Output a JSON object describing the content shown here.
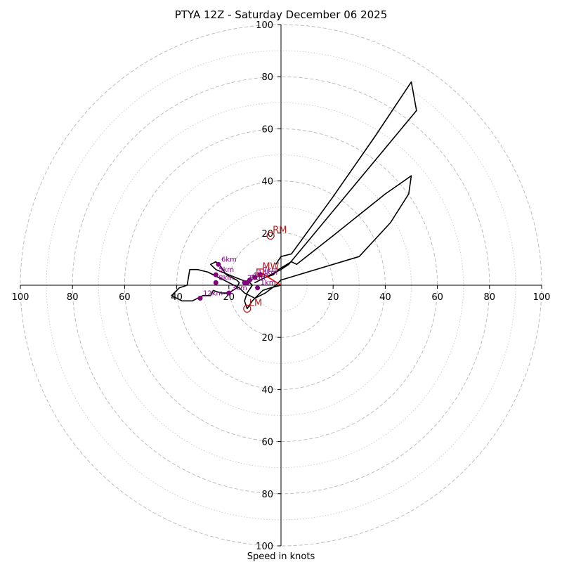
{
  "chart_data": {
    "type": "hodograph",
    "title": "PTYA 12Z - Saturday December 06 2025",
    "xlabel": "Speed in knots",
    "axis_range": [
      -100,
      100
    ],
    "major_rings": [
      20,
      40,
      60,
      80,
      100
    ],
    "minor_rings": [
      10,
      30,
      50,
      70,
      90
    ],
    "x_tick_labels": [
      "100",
      "80",
      "60",
      "40",
      "20",
      "20",
      "40",
      "60",
      "80",
      "100"
    ],
    "x_tick_values": [
      -100,
      -80,
      -60,
      -40,
      -20,
      20,
      40,
      60,
      80,
      100
    ],
    "y_tick_labels": [
      "100",
      "80",
      "60",
      "40",
      "20",
      "20",
      "40",
      "60",
      "80",
      "100"
    ],
    "y_tick_values": [
      100,
      80,
      60,
      40,
      20,
      -20,
      -40,
      -60,
      -80,
      -100
    ],
    "colors": {
      "hodograph": "#000000",
      "height_marker": "#800080",
      "storm_motion": "#b22222",
      "shear_vector": "#ff0000",
      "rings": "#bdbdbd"
    },
    "hodograph": [
      [
        0,
        0
      ],
      [
        -4,
        -1
      ],
      [
        -7,
        -2
      ],
      [
        -9,
        -4
      ],
      [
        -11,
        -6
      ],
      [
        -13,
        -9
      ],
      [
        -14,
        -6
      ],
      [
        -13,
        -3
      ],
      [
        -11,
        0
      ],
      [
        -12,
        1
      ],
      [
        -15,
        2
      ],
      [
        -20,
        4
      ],
      [
        -25,
        6
      ],
      [
        -27,
        8
      ],
      [
        -25,
        9
      ],
      [
        -23,
        7
      ],
      [
        -21,
        4
      ],
      [
        -17,
        2
      ],
      [
        -16,
        1
      ],
      [
        -17,
        -1
      ],
      [
        -20,
        -3
      ],
      [
        -23,
        -3
      ],
      [
        -26,
        -2
      ],
      [
        -27,
        -4
      ],
      [
        -30,
        -4
      ],
      [
        -34,
        -6
      ],
      [
        -38,
        -6
      ],
      [
        -42,
        -4
      ],
      [
        -39,
        -1
      ],
      [
        -36,
        0
      ],
      [
        -35,
        6
      ],
      [
        -32,
        6
      ],
      [
        -28,
        5
      ],
      [
        -24,
        3
      ],
      [
        -20,
        1
      ],
      [
        -16,
        -1
      ],
      [
        -14,
        -3
      ],
      [
        -12,
        -4
      ],
      [
        -10,
        -5
      ],
      [
        -8,
        -4
      ],
      [
        -6,
        -3
      ],
      [
        -2,
        0
      ],
      [
        0,
        2
      ],
      [
        30,
        11
      ],
      [
        42,
        24
      ],
      [
        49,
        35
      ],
      [
        50,
        42
      ],
      [
        40,
        35
      ],
      [
        20,
        19
      ],
      [
        6,
        8
      ],
      [
        4,
        9
      ],
      [
        -1,
        6
      ],
      [
        -3,
        4
      ],
      [
        -6,
        3
      ],
      [
        -10,
        1
      ],
      [
        -6,
        3
      ],
      [
        -2,
        5
      ],
      [
        0,
        6
      ],
      [
        3,
        8
      ],
      [
        52,
        67
      ],
      [
        50,
        78
      ],
      [
        36,
        57
      ],
      [
        20,
        34
      ],
      [
        4,
        12
      ],
      [
        0,
        11
      ],
      [
        -2,
        8
      ]
    ],
    "height_markers": [
      {
        "label": "1km",
        "u": -9,
        "v": -1
      },
      {
        "label": "2km",
        "u": -14,
        "v": 1
      },
      {
        "label": "3km",
        "u": -20,
        "v": -3
      },
      {
        "label": "4km",
        "u": -12,
        "v": 2
      },
      {
        "label": "5km",
        "u": -25,
        "v": 4
      },
      {
        "label": "6km",
        "u": -24,
        "v": 8
      },
      {
        "label": "7km",
        "u": -8,
        "v": 4
      },
      {
        "label": "8km",
        "u": -25,
        "v": 1
      },
      {
        "label": "9km",
        "u": -13,
        "v": 1
      },
      {
        "label": "10km",
        "u": -10,
        "v": 3
      },
      {
        "label": "12km",
        "u": -31,
        "v": -5
      }
    ],
    "storm_motion": [
      {
        "label": "RM",
        "u": -4,
        "v": 19
      },
      {
        "label": "LM",
        "u": -13,
        "v": -9
      },
      {
        "label": "MW",
        "u": -8,
        "v": 5
      }
    ],
    "shear_vector": {
      "from": [
        0,
        0
      ],
      "to": [
        -8,
        5
      ]
    }
  }
}
